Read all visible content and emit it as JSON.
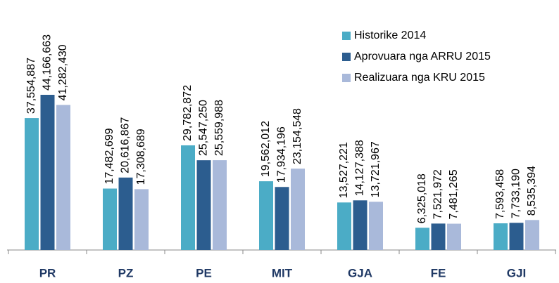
{
  "chart_data": {
    "type": "bar",
    "categories": [
      "PR",
      "PZ",
      "PE",
      "MIT",
      "GJA",
      "FE",
      "GJI"
    ],
    "series": [
      {
        "name": "Historike  2014",
        "color": "#4BACC6",
        "values": [
          37554887,
          17482699,
          29782872,
          19562012,
          13527221,
          6325018,
          7593458
        ],
        "value_labels": [
          "37,554,887",
          "17,482,699",
          "29,782,872",
          "19,562,012",
          "13,527,221",
          "6,325,018",
          "7,593,458"
        ]
      },
      {
        "name": "Aprovuara nga ARRU 2015",
        "color": "#2C5D8F",
        "values": [
          44166663,
          20616867,
          25547250,
          17934196,
          14127388,
          7521972,
          7733190
        ],
        "value_labels": [
          "44,166,663",
          "20,616,867",
          "25,547,250",
          "17,934,196",
          "14,127,388",
          "7,521,972",
          "7,733,190"
        ]
      },
      {
        "name": "Realizuara nga KRU  2015",
        "color": "#A9B9DA",
        "values": [
          41282430,
          17308689,
          25559988,
          23154548,
          13721967,
          7481265,
          8535394
        ],
        "value_labels": [
          "41,282,430",
          "17,308,689",
          "25,559,988",
          "23,154,548",
          "13,721,967",
          "7,481,265",
          "8,535,394"
        ]
      }
    ],
    "legend": "upper right"
  }
}
